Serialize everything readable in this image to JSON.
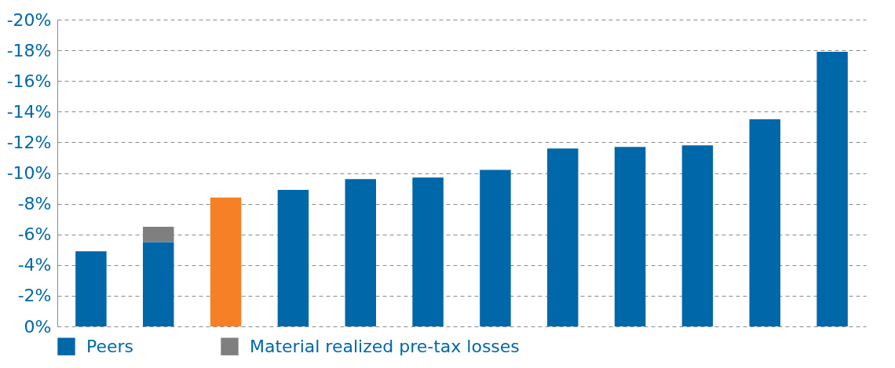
{
  "chart_data": {
    "type": "bar",
    "stacked": true,
    "categories": [
      null,
      null,
      null,
      null,
      null,
      null,
      null,
      null,
      null,
      null,
      null,
      null
    ],
    "series": [
      {
        "color": "#f58025",
        "values": [
          null,
          null,
          -8.4,
          null,
          null,
          null,
          null,
          null,
          null,
          null,
          null,
          null
        ]
      },
      {
        "name": "Peers",
        "color": "#0067a9",
        "values": [
          -4.9,
          -5.5,
          null,
          -8.9,
          -9.6,
          -9.7,
          -10.2,
          -11.6,
          -11.7,
          -11.8,
          -13.5,
          -17.9
        ]
      },
      {
        "name": "Material realized pre-tax losses",
        "color": "#7f7f7f",
        "values": [
          null,
          -1.0,
          null,
          null,
          null,
          null,
          null,
          null,
          null,
          null,
          null,
          null
        ]
      }
    ],
    "ylim": [
      0,
      -20
    ],
    "yticks": [
      {
        "value": 0,
        "label": "0%"
      },
      {
        "value": -2,
        "label": "-2%"
      },
      {
        "value": -4,
        "label": "-4%"
      },
      {
        "value": -6,
        "label": "-6%"
      },
      {
        "value": -8,
        "label": "-8%"
      },
      {
        "value": -10,
        "label": "-10%"
      },
      {
        "value": -12,
        "label": "-12%"
      },
      {
        "value": -14,
        "label": "-14%"
      },
      {
        "value": -16,
        "label": "-16%"
      },
      {
        "value": -18,
        "label": "-18%"
      },
      {
        "value": -20,
        "label": "-20%"
      }
    ],
    "grid": "y",
    "legend": "bottom",
    "tick_labels": "y"
  }
}
